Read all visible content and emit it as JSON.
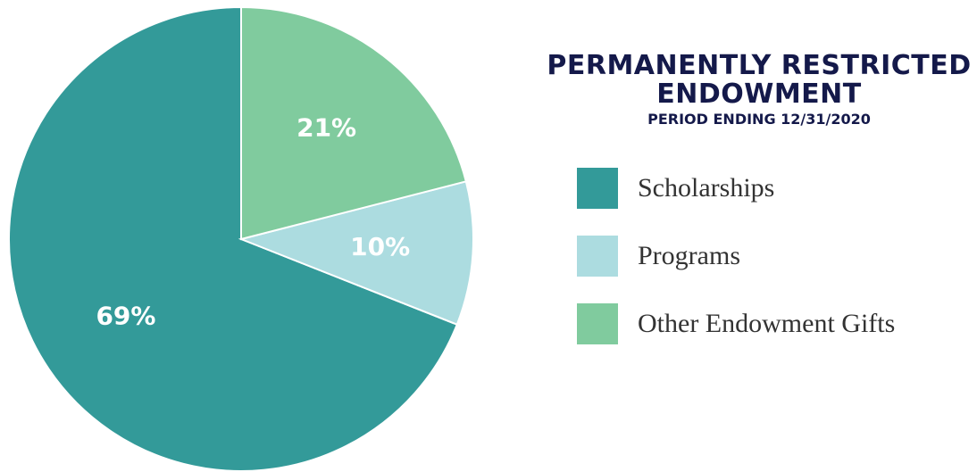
{
  "chart_data": {
    "type": "pie",
    "title": "PERMANENTLY RESTRICTED ENDOWMENT",
    "subtitle": "PERIOD ENDING 12/31/2020",
    "categories": [
      "Scholarships",
      "Programs",
      "Other Endowment Gifts"
    ],
    "values": [
      69,
      10,
      21
    ],
    "value_labels": [
      "69%",
      "10%",
      "21%"
    ],
    "colors": [
      "#339a99",
      "#acdce0",
      "#80cb9e"
    ]
  }
}
